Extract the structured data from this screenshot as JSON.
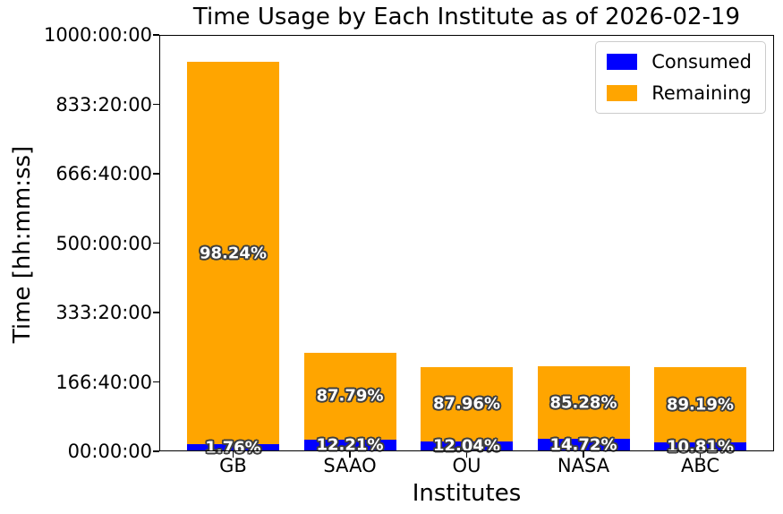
{
  "figure": {
    "title": "Time Usage by Each Institute as of 2026-02-19",
    "xlabel": "Institutes",
    "ylabel": "Time [hh:mm:ss]"
  },
  "legend": {
    "position": "upper right",
    "items": [
      {
        "name": "consumed",
        "label": "Consumed",
        "color": "#0000ff"
      },
      {
        "name": "remaining",
        "label": "Remaining",
        "color": "#ffa500"
      }
    ]
  },
  "chart_data": {
    "type": "bar",
    "stacked": true,
    "title": "Time Usage by Each Institute as of 2026-02-19",
    "xlabel": "Institutes",
    "ylabel": "Time [hh:mm:ss]",
    "categories": [
      "GB",
      "SAAO",
      "OU",
      "NASA",
      "ABC"
    ],
    "series": [
      {
        "name": "Consumed",
        "color": "#0000ff",
        "values_hours": [
          16.5,
          28.8,
          24.3,
          30.0,
          21.9
        ],
        "pct": [
          1.76,
          12.21,
          12.04,
          14.72,
          10.81
        ],
        "labels": [
          "1.76%",
          "12.21%",
          "12.04%",
          "14.72%",
          "10.81%"
        ]
      },
      {
        "name": "Remaining",
        "color": "#ffa500",
        "values_hours": [
          918.5,
          207.2,
          177.7,
          174.0,
          181.1
        ],
        "pct": [
          98.24,
          87.79,
          87.96,
          85.28,
          89.19
        ],
        "labels": [
          "98.24%",
          "87.79%",
          "87.96%",
          "85.28%",
          "89.19%"
        ]
      }
    ],
    "totals_hours": [
      935,
      236,
      202,
      204,
      203
    ],
    "ylim_hours": [
      0,
      1000
    ],
    "yticks": [
      "00:00:00",
      "166:40:00",
      "333:20:00",
      "500:00:00",
      "666:40:00",
      "833:20:00",
      "1000:00:00"
    ],
    "grid": false,
    "legend_position": "upper right",
    "bar_label_style": "white bold with dark outline"
  }
}
